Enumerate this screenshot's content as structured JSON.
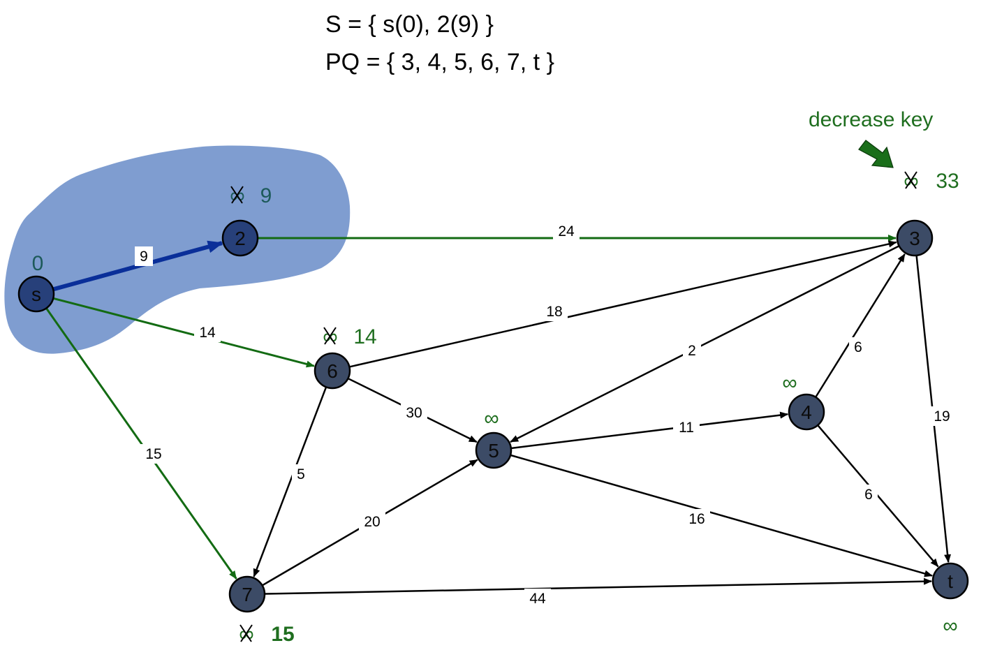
{
  "header": {
    "s_set": "S = { s(0), 2(9) }",
    "pq_set": "PQ = { 3, 4, 5, 6, 7, t }"
  },
  "annotation": {
    "text": "decrease key",
    "color": "#1f6e1f"
  },
  "colors": {
    "region": "#7f9dd0",
    "node_fill": "#3c4b66",
    "node_fill_in_set": "#27407a",
    "tree_edge": "#0a2f99",
    "relaxed_edge": "#136b13",
    "edge": "#000000",
    "key_green": "#1f6e1f",
    "key_dark": "#1d5a5a"
  },
  "nodes": [
    {
      "id": "s",
      "label": "s"
    },
    {
      "id": "2",
      "label": "2"
    },
    {
      "id": "3",
      "label": "3"
    },
    {
      "id": "4",
      "label": "4"
    },
    {
      "id": "5",
      "label": "5"
    },
    {
      "id": "6",
      "label": "6"
    },
    {
      "id": "7",
      "label": "7"
    },
    {
      "id": "t",
      "label": "t"
    }
  ],
  "edges": [
    {
      "from": "s",
      "to": "2",
      "weight": "9",
      "style": "tree"
    },
    {
      "from": "s",
      "to": "6",
      "weight": "14",
      "style": "relaxed"
    },
    {
      "from": "s",
      "to": "7",
      "weight": "15",
      "style": "relaxed"
    },
    {
      "from": "2",
      "to": "3",
      "weight": "24",
      "style": "relaxed"
    },
    {
      "from": "6",
      "to": "3",
      "weight": "18",
      "style": "normal"
    },
    {
      "from": "6",
      "to": "5",
      "weight": "30",
      "style": "normal"
    },
    {
      "from": "6",
      "to": "7",
      "weight": "5",
      "style": "normal"
    },
    {
      "from": "3",
      "to": "5",
      "weight": "2",
      "style": "normal"
    },
    {
      "from": "3",
      "to": "t",
      "weight": "19",
      "style": "normal"
    },
    {
      "from": "4",
      "to": "3",
      "weight": "6",
      "style": "normal"
    },
    {
      "from": "4",
      "to": "t",
      "weight": "6",
      "style": "normal"
    },
    {
      "from": "5",
      "to": "4",
      "weight": "11",
      "style": "normal"
    },
    {
      "from": "5",
      "to": "t",
      "weight": "16",
      "style": "normal"
    },
    {
      "from": "7",
      "to": "5",
      "weight": "20",
      "style": "normal"
    },
    {
      "from": "7",
      "to": "t",
      "weight": "44",
      "style": "normal"
    }
  ],
  "keys": [
    {
      "node": "s",
      "value": "0",
      "crossed": false
    },
    {
      "node": "2",
      "value": "9",
      "crossed": true,
      "old": "∞"
    },
    {
      "node": "3",
      "value": "33",
      "crossed": true,
      "old": "∞"
    },
    {
      "node": "6",
      "value": "14",
      "crossed": true,
      "old": "∞"
    },
    {
      "node": "7",
      "value": "15",
      "crossed": true,
      "old": "∞"
    },
    {
      "node": "5",
      "value": "∞",
      "crossed": false
    },
    {
      "node": "4",
      "value": "∞",
      "crossed": false
    },
    {
      "node": "t",
      "value": "∞",
      "crossed": false
    }
  ]
}
